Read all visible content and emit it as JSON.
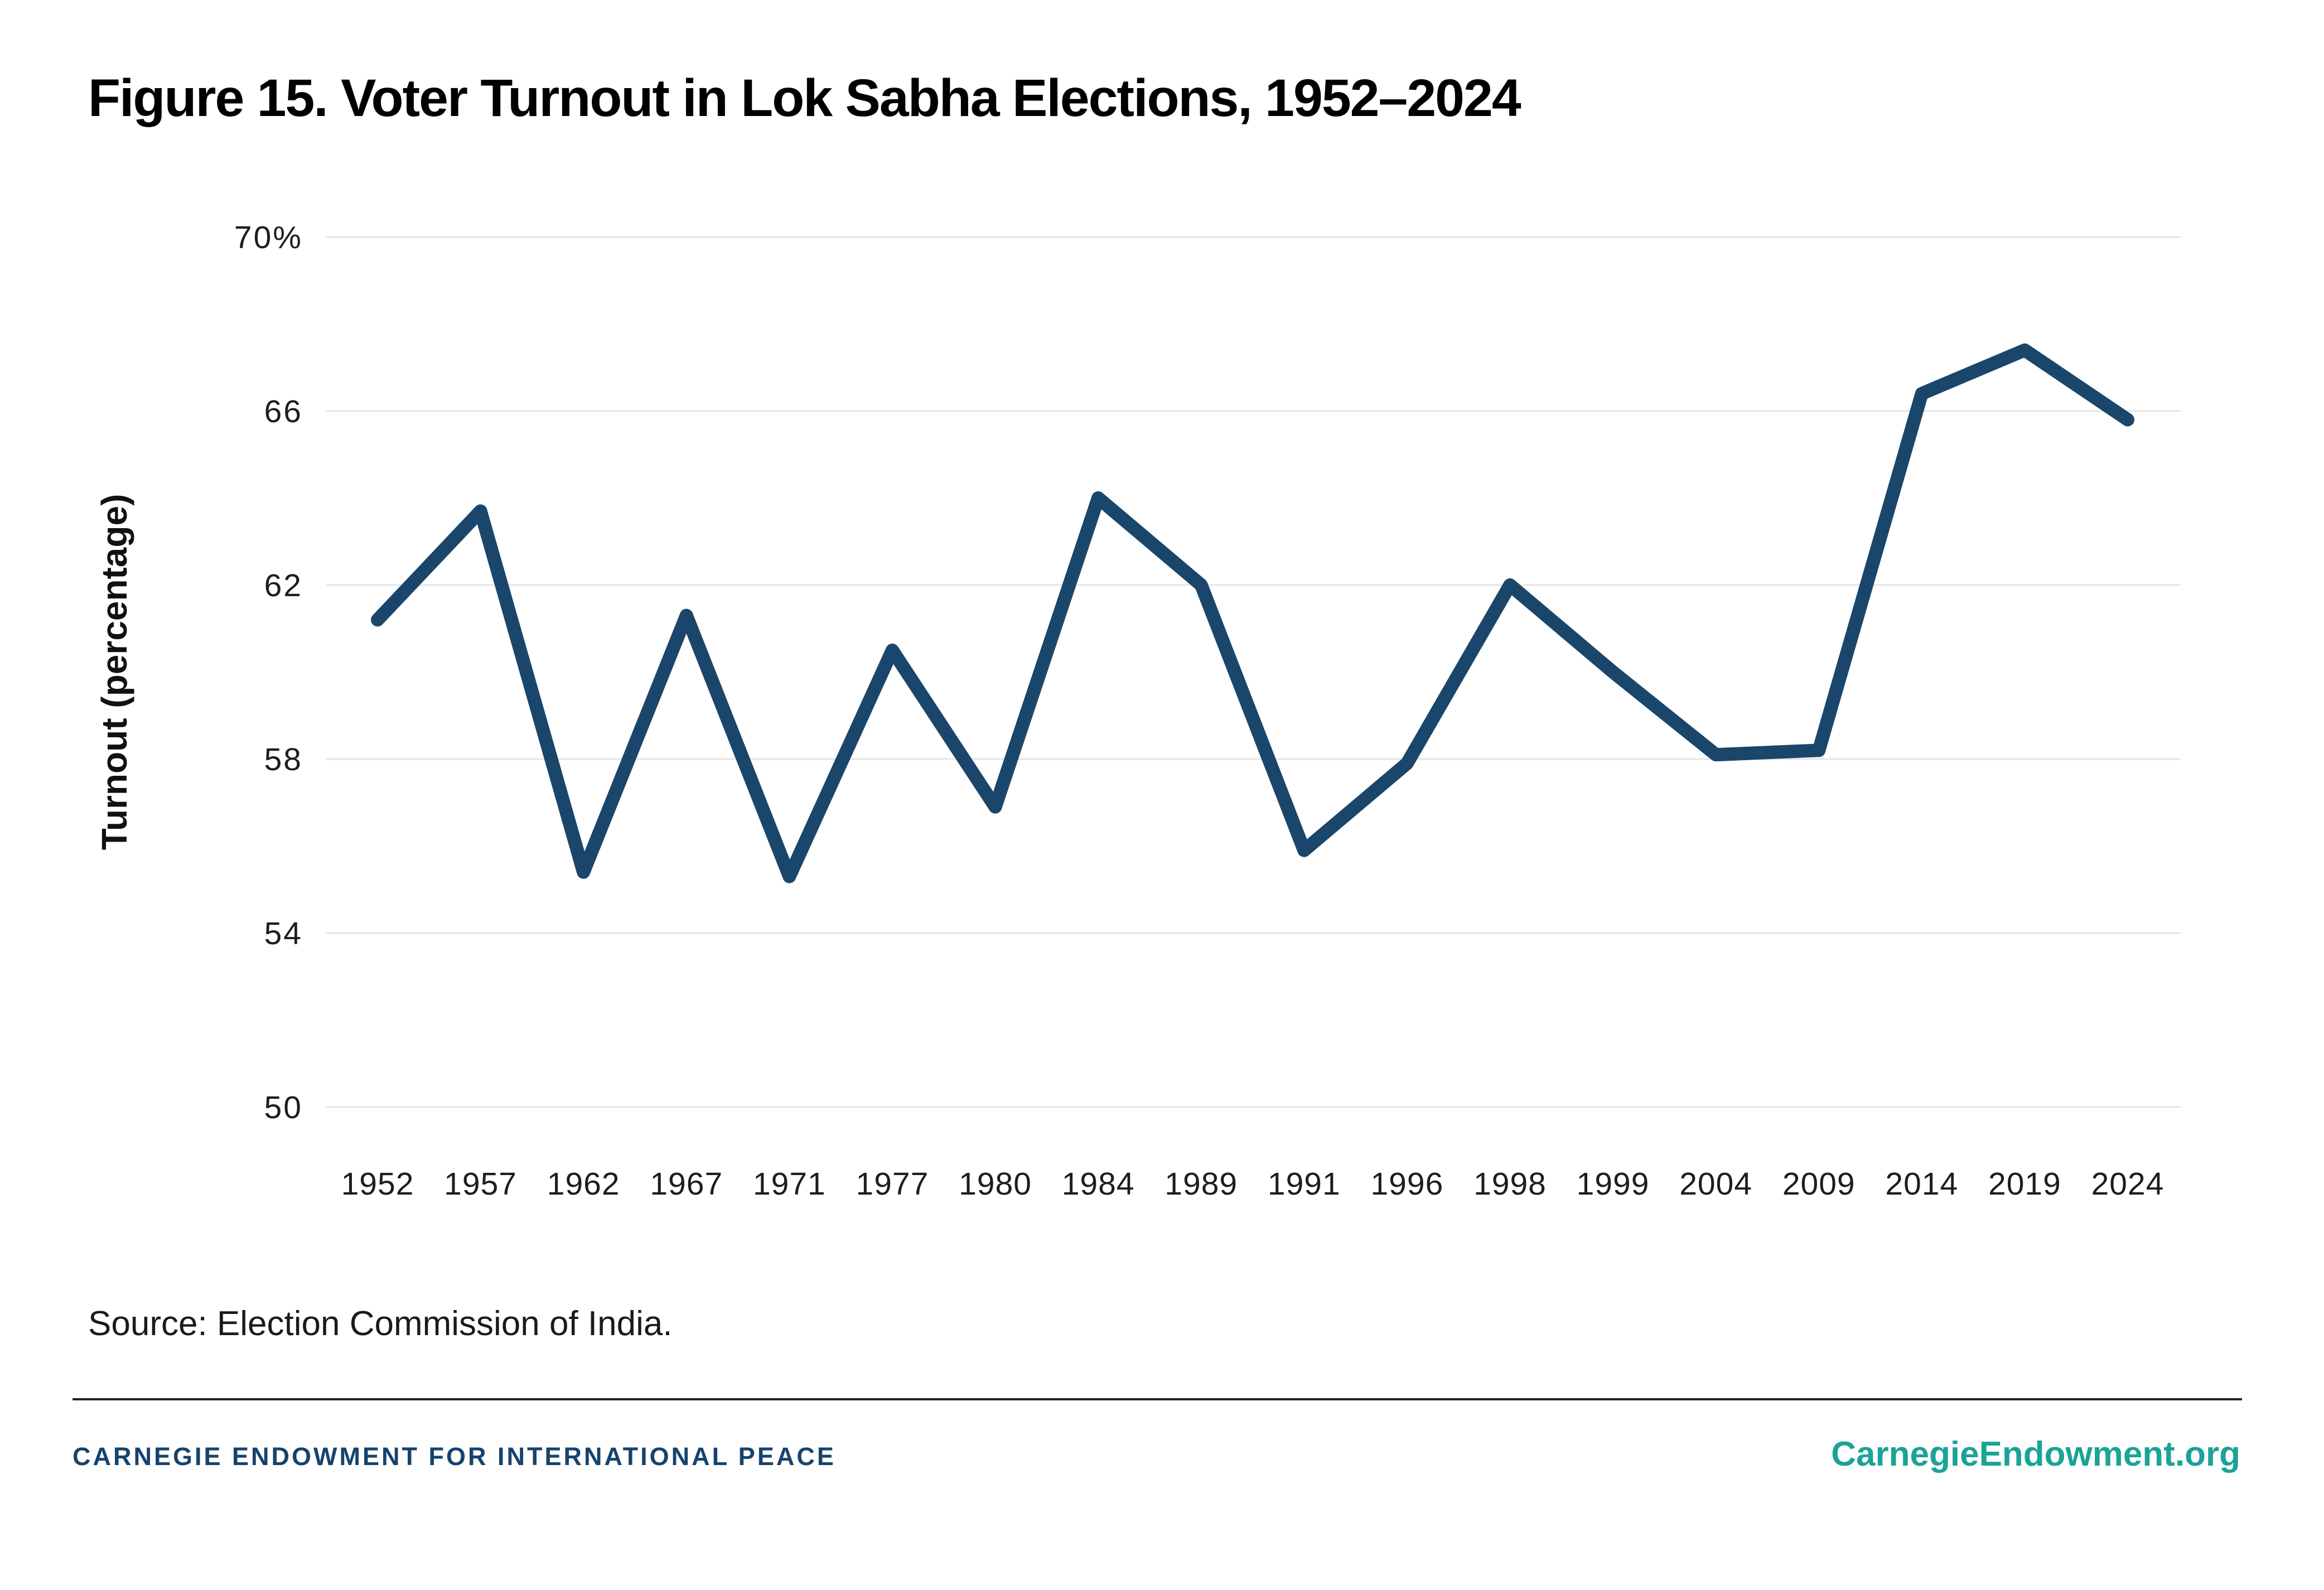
{
  "header": {
    "title": "Figure 15. Voter Turnout in Lok Sabha Elections, 1952–2024"
  },
  "chart_data": {
    "type": "line",
    "title": "Figure 15. Voter Turnout in Lok Sabha Elections, 1952–2024",
    "categories": [
      "1952",
      "1957",
      "1962",
      "1967",
      "1971",
      "1977",
      "1980",
      "1984",
      "1989",
      "1991",
      "1996",
      "1998",
      "1999",
      "2004",
      "2009",
      "2014",
      "2019",
      "2024"
    ],
    "values": [
      61.2,
      63.7,
      55.4,
      61.3,
      55.3,
      60.5,
      56.9,
      64.0,
      62.0,
      55.9,
      57.9,
      62.0,
      60.0,
      58.1,
      58.2,
      66.4,
      67.4,
      65.8
    ],
    "series_name": "Voter turnout",
    "xlabel": "",
    "ylabel": "Turnout (percentage)",
    "ylim": [
      50,
      70
    ],
    "yticks": [
      70,
      66,
      62,
      58,
      54,
      50
    ],
    "ytick_labels": [
      "70%",
      "66",
      "62",
      "58",
      "54",
      "50"
    ],
    "grid": true,
    "legend": false,
    "line_color": "#1a466b",
    "grid_color": "#e6e6e6",
    "tick_label_color": "#1d1d1d"
  },
  "source": {
    "text": "Source: Election Commission of India."
  },
  "footer": {
    "org": "CARNEGIE ENDOWMENT FOR INTERNATIONAL PEACE",
    "site": "CarnegieEndowment.org",
    "org_color": "#16436e",
    "site_color": "#1aa396"
  }
}
